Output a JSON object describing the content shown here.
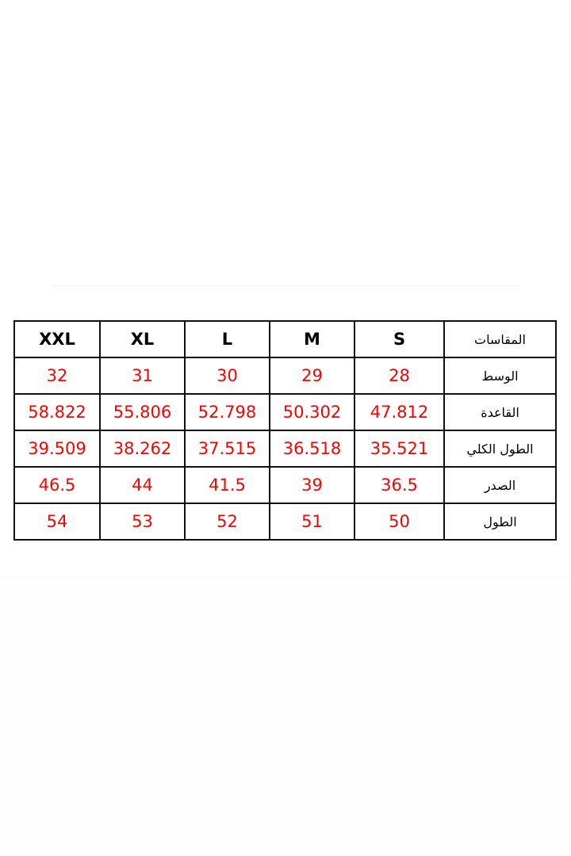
{
  "table": {
    "header_label": "المقاسات",
    "sizes": [
      "XXL",
      "XL",
      "L",
      "M",
      "S"
    ],
    "rows": [
      {
        "label": "الوسط",
        "values": [
          "32",
          "31",
          "30",
          "29",
          "28"
        ]
      },
      {
        "label": "القاعدة",
        "values": [
          "58.822",
          "55.806",
          "52.798",
          "50.302",
          "47.812"
        ]
      },
      {
        "label": "الطول الكلي",
        "values": [
          "39.509",
          "38.262",
          "37.515",
          "36.518",
          "35.521"
        ]
      },
      {
        "label": "الصدر",
        "values": [
          "46.5",
          "44",
          "41.5",
          "39",
          "36.5"
        ]
      },
      {
        "label": "الطول",
        "values": [
          "54",
          "53",
          "52",
          "51",
          "50"
        ]
      }
    ],
    "value_color": "#ff0000"
  }
}
